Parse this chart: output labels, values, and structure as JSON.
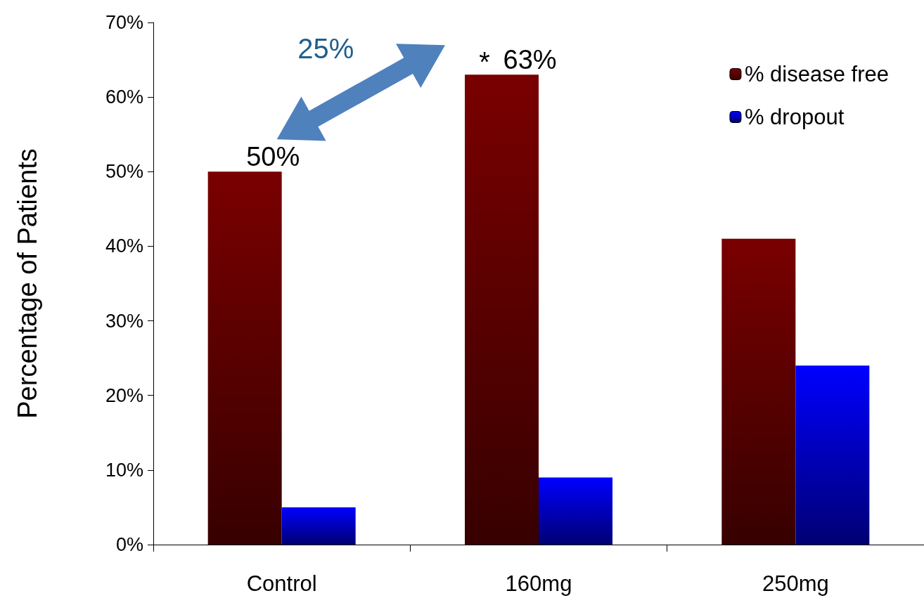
{
  "chart_data": {
    "type": "bar",
    "ylabel": "Percentage of Patients",
    "categories": [
      "Control",
      "160mg",
      "250mg"
    ],
    "series": [
      {
        "name": "% disease free",
        "color": "#7a0000",
        "values": [
          50,
          63,
          41
        ],
        "value_labels": [
          "50%",
          "63%",
          null
        ]
      },
      {
        "name": "% dropout",
        "color": "#0000ff",
        "values": [
          5,
          9,
          24
        ]
      }
    ],
    "ylim": [
      0,
      70
    ],
    "yticks": [
      {
        "value": 0,
        "label": "0%"
      },
      {
        "value": 10,
        "label": "10%"
      },
      {
        "value": 20,
        "label": "20%"
      },
      {
        "value": 30,
        "label": "30%"
      },
      {
        "value": 40,
        "label": "40%"
      },
      {
        "value": 50,
        "label": "50%"
      },
      {
        "value": 60,
        "label": "60%"
      },
      {
        "value": 70,
        "label": "70%"
      }
    ],
    "annotations": [
      "25%",
      {
        "text": "*",
        "x": "160mg",
        "y": 63
      }
    ],
    "grid": false,
    "legend": "top right"
  }
}
